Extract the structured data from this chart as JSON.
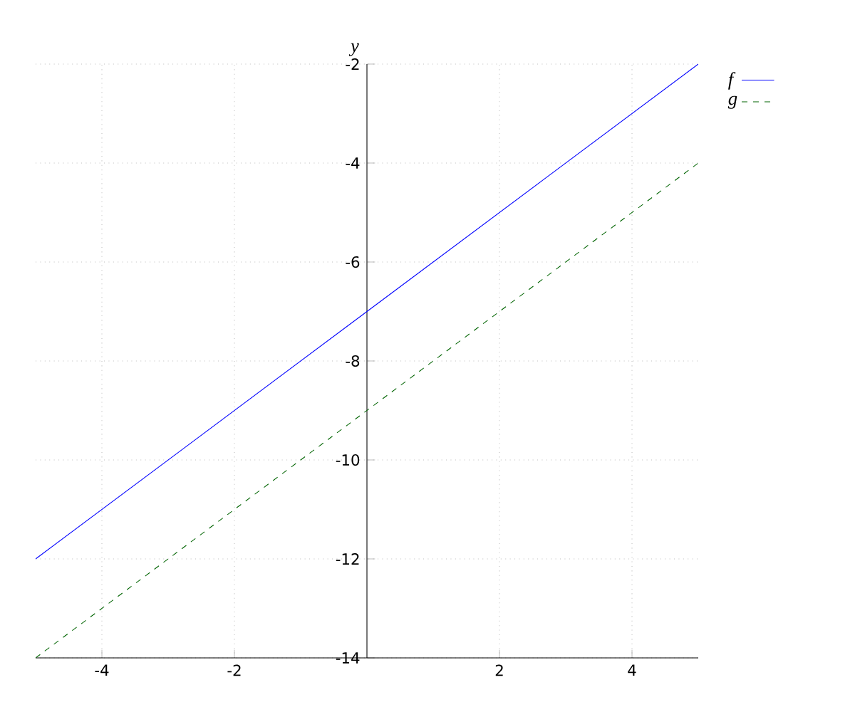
{
  "chart_data": {
    "type": "line",
    "ylabel": "y",
    "x": [
      -5,
      5
    ],
    "series": [
      {
        "name": "f",
        "color": "#0000ff",
        "line_style": "solid",
        "values": [
          -12,
          -2
        ]
      },
      {
        "name": "g",
        "color": "#006400",
        "line_style": "dashed",
        "values": [
          -14,
          -4
        ]
      }
    ],
    "xlim": [
      -5,
      5
    ],
    "xticks": [
      -4,
      -2,
      2,
      4
    ],
    "ylim": [
      -14,
      -2
    ],
    "yticks": [
      -14,
      -12,
      -10,
      -8,
      -6,
      -4,
      -2
    ],
    "grid": true,
    "legend": "top right"
  }
}
